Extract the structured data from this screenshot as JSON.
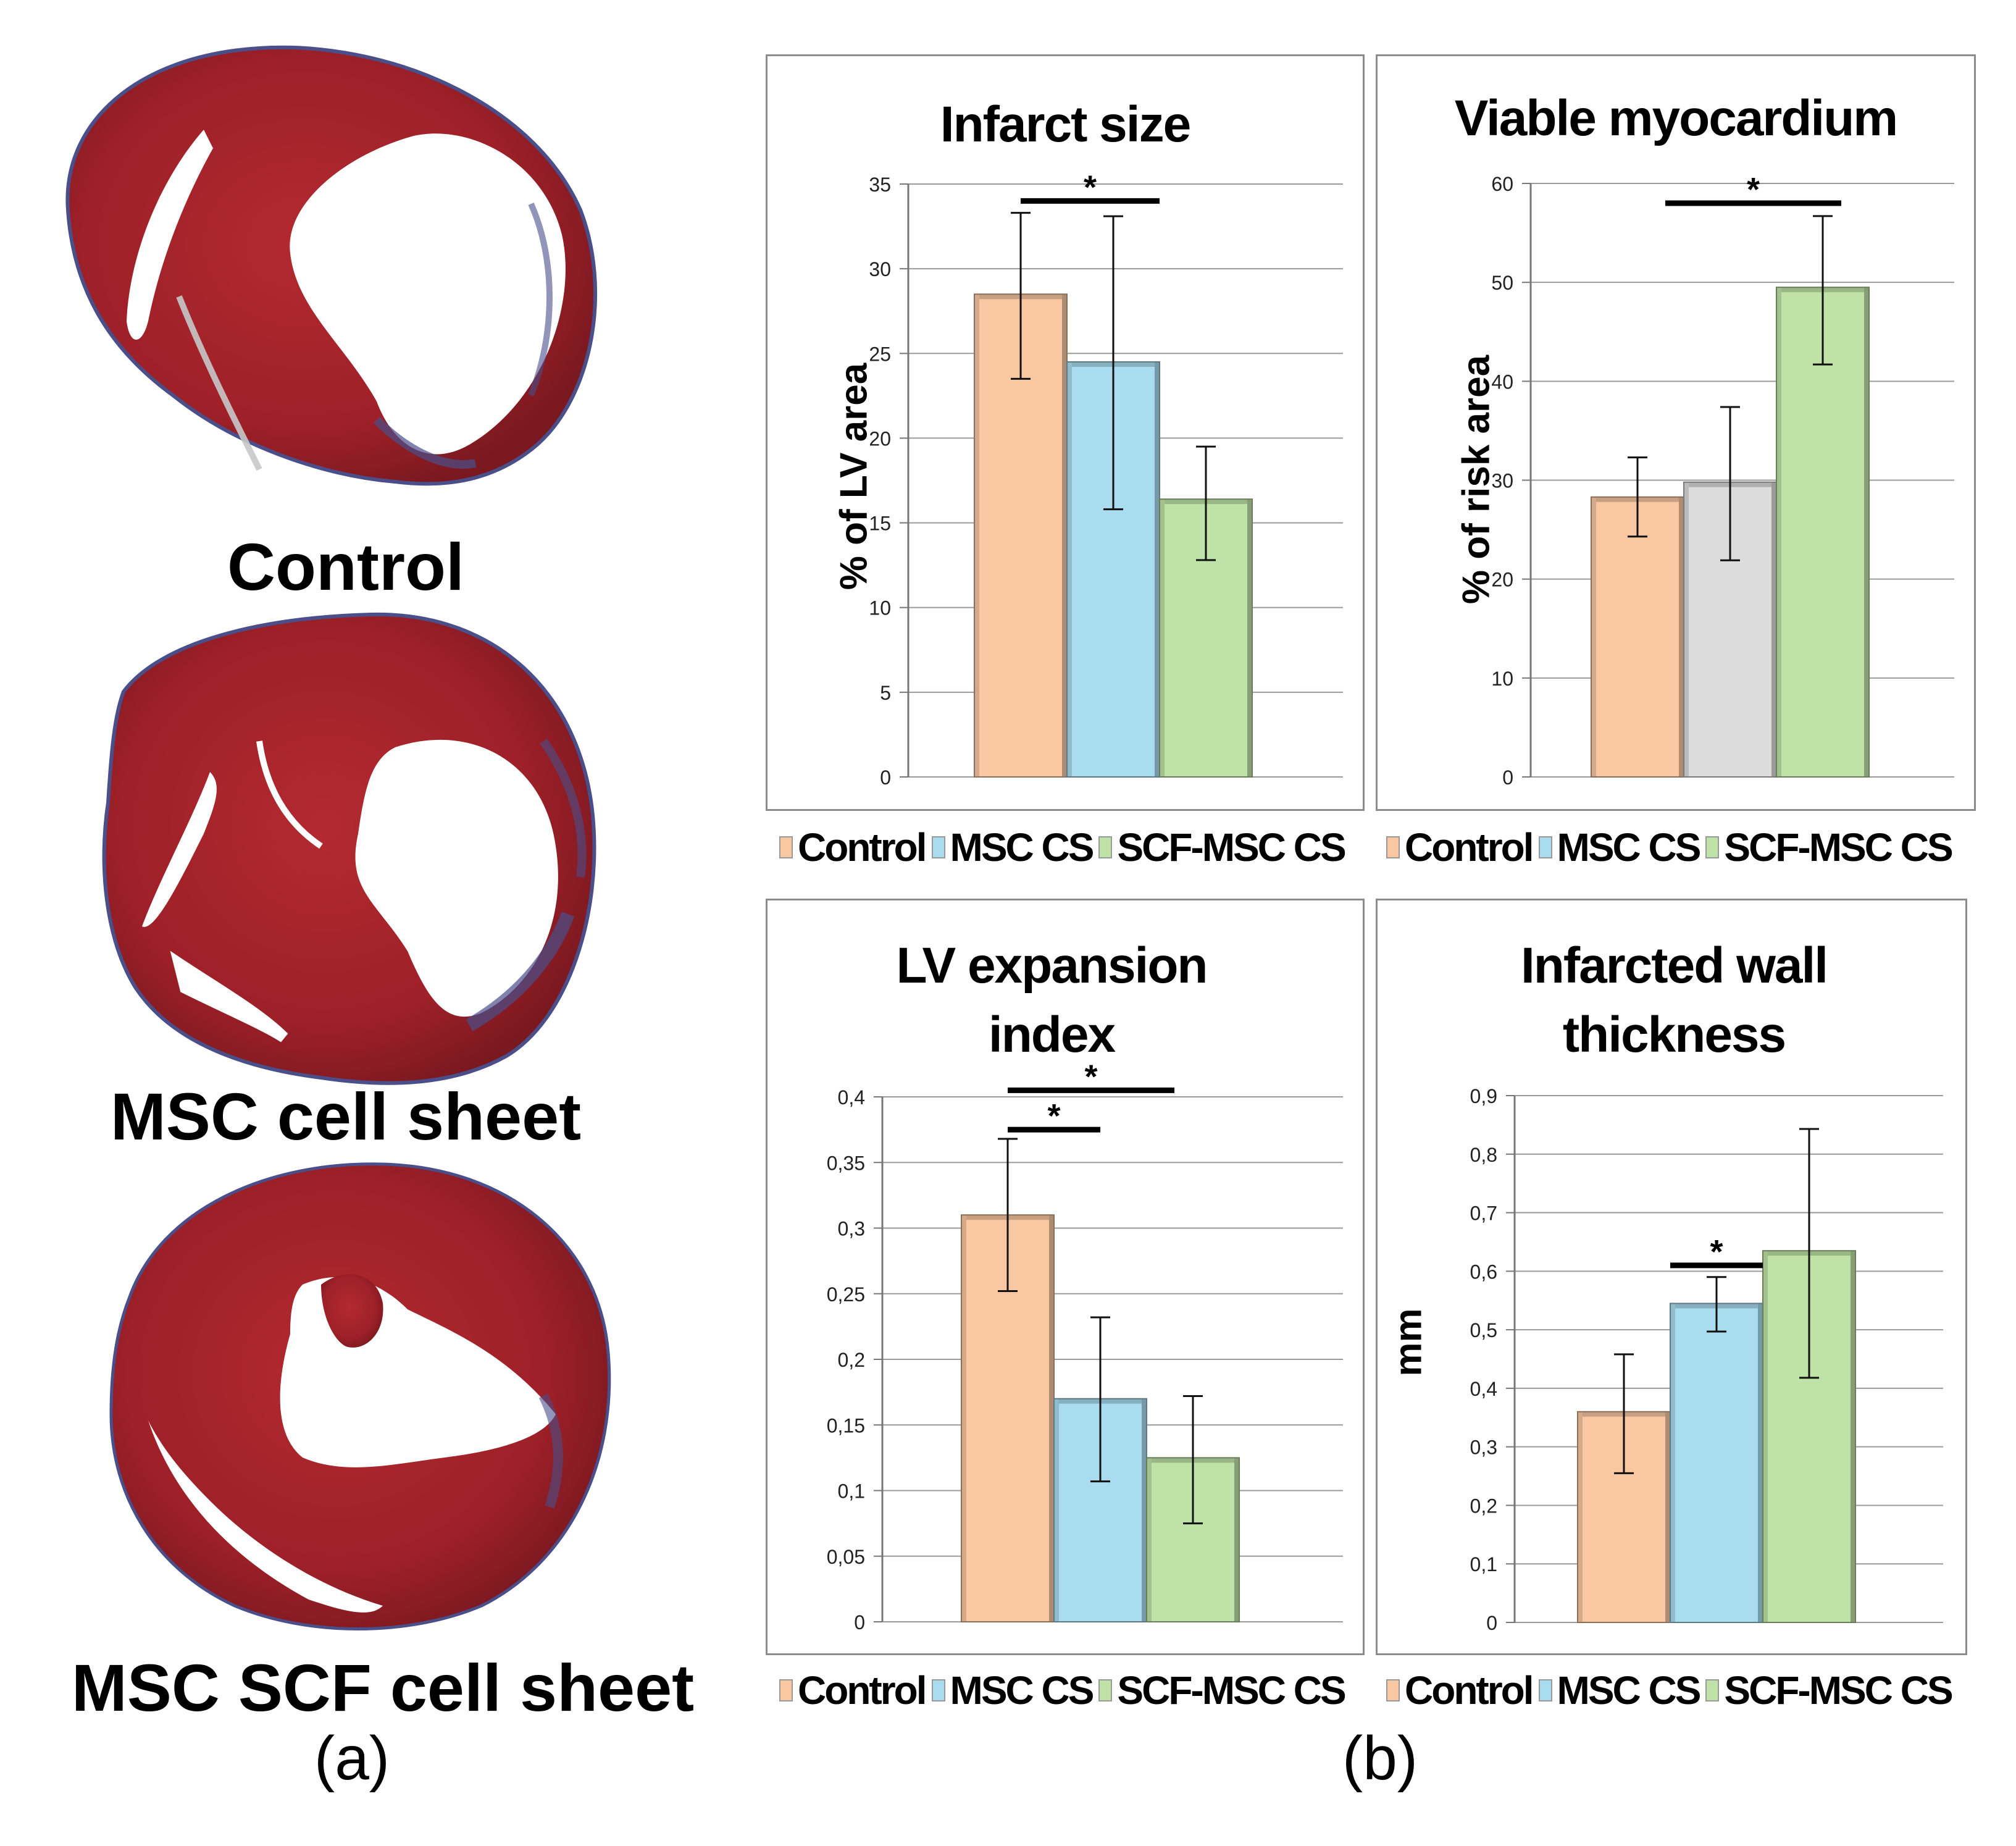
{
  "panel_a": {
    "label": "(a)",
    "samples": [
      {
        "name": "Control"
      },
      {
        "name": "MSC cell sheet"
      },
      {
        "name": "MSC SCF cell sheet"
      }
    ]
  },
  "panel_b": {
    "label": "(b)"
  },
  "colors": {
    "control": "#f9c8a2",
    "msc": "#a9dcee",
    "scf": "#bfe3a6",
    "msc_grey": "#dcdcdc",
    "tissue": "#a3222a",
    "fibrosis": "#4a4f8a"
  },
  "legend": [
    "Control",
    "MSC CS",
    "SCF-MSC CS"
  ],
  "chart_data": [
    {
      "type": "bar",
      "title": "Infarct size",
      "ylabel": "% of LV area",
      "categories": [
        "Control",
        "MSC CS",
        "SCF-MSC CS"
      ],
      "values": [
        28.5,
        24.5,
        16.4
      ],
      "errors": [
        [
          23.5,
          33.3
        ],
        [
          15.8,
          33.1
        ],
        [
          12.8,
          19.5
        ]
      ],
      "ylim": [
        0,
        35
      ],
      "yticks": [
        0,
        5,
        10,
        15,
        20,
        25,
        30,
        35
      ],
      "ytick_labels": [
        "0",
        "5",
        "10",
        "15",
        "20",
        "25",
        "30",
        "35"
      ],
      "colors": [
        "#f9c8a2",
        "#a9dcee",
        "#bfe3a6"
      ],
      "significance": [
        {
          "from": 0,
          "to": 1.5,
          "y": 34.0,
          "label": "*"
        }
      ]
    },
    {
      "type": "bar",
      "title": "Viable myocardium",
      "ylabel": "% of risk area",
      "categories": [
        "Control",
        "MSC CS",
        "SCF-MSC CS"
      ],
      "values": [
        28.3,
        29.8,
        49.5
      ],
      "errors": [
        [
          24.3,
          32.3
        ],
        [
          21.9,
          37.4
        ],
        [
          41.7,
          56.7
        ]
      ],
      "ylim": [
        0,
        60
      ],
      "yticks": [
        0,
        10,
        20,
        30,
        40,
        50,
        60
      ],
      "ytick_labels": [
        "0",
        "10",
        "20",
        "30",
        "40",
        "50",
        "60"
      ],
      "colors": [
        "#f9c8a2",
        "#dcdcdc",
        "#bfe3a6"
      ],
      "significance": [
        {
          "from": 0.3,
          "to": 2.2,
          "y": 58.0,
          "label": "*"
        }
      ]
    },
    {
      "type": "bar",
      "title": "LV expansion index",
      "ylabel": "",
      "categories": [
        "Control",
        "MSC CS",
        "SCF-MSC CS"
      ],
      "values": [
        0.31,
        0.17,
        0.125
      ],
      "errors": [
        [
          0.252,
          0.368
        ],
        [
          0.107,
          0.232
        ],
        [
          0.075,
          0.172
        ]
      ],
      "ylim": [
        0,
        0.4
      ],
      "yticks": [
        0,
        0.05,
        0.1,
        0.15,
        0.2,
        0.25,
        0.3,
        0.35,
        0.4
      ],
      "ytick_labels": [
        "0",
        "0,05",
        "0,1",
        "0,15",
        "0,2",
        "0,25",
        "0,3",
        "0,35",
        "0,4"
      ],
      "colors": [
        "#f9c8a2",
        "#a9dcee",
        "#bfe3a6"
      ],
      "significance": [
        {
          "from": 0.0,
          "to": 1.0,
          "y": 0.375,
          "label": "*"
        },
        {
          "from": 0.0,
          "to": 1.8,
          "y": 0.405,
          "label": "*"
        }
      ]
    },
    {
      "type": "bar",
      "title": "Infarcted wall thickness",
      "ylabel": "mm",
      "categories": [
        "Control",
        "MSC CS",
        "SCF-MSC CS"
      ],
      "values": [
        0.36,
        0.545,
        0.635
      ],
      "errors": [
        [
          0.255,
          0.458
        ],
        [
          0.497,
          0.59
        ],
        [
          0.418,
          0.843
        ]
      ],
      "ylim": [
        0,
        0.9
      ],
      "yticks": [
        0,
        0.1,
        0.2,
        0.3,
        0.4,
        0.5,
        0.6,
        0.7,
        0.8,
        0.9
      ],
      "ytick_labels": [
        "0",
        "0,1",
        "0,2",
        "0,3",
        "0,4",
        "0,5",
        "0,6",
        "0,7",
        "0,8",
        "0,9"
      ],
      "colors": [
        "#f9c8a2",
        "#a9dcee",
        "#bfe3a6"
      ],
      "significance": [
        {
          "from": 0.5,
          "to": 1.5,
          "y": 0.61,
          "label": "*"
        }
      ]
    }
  ]
}
